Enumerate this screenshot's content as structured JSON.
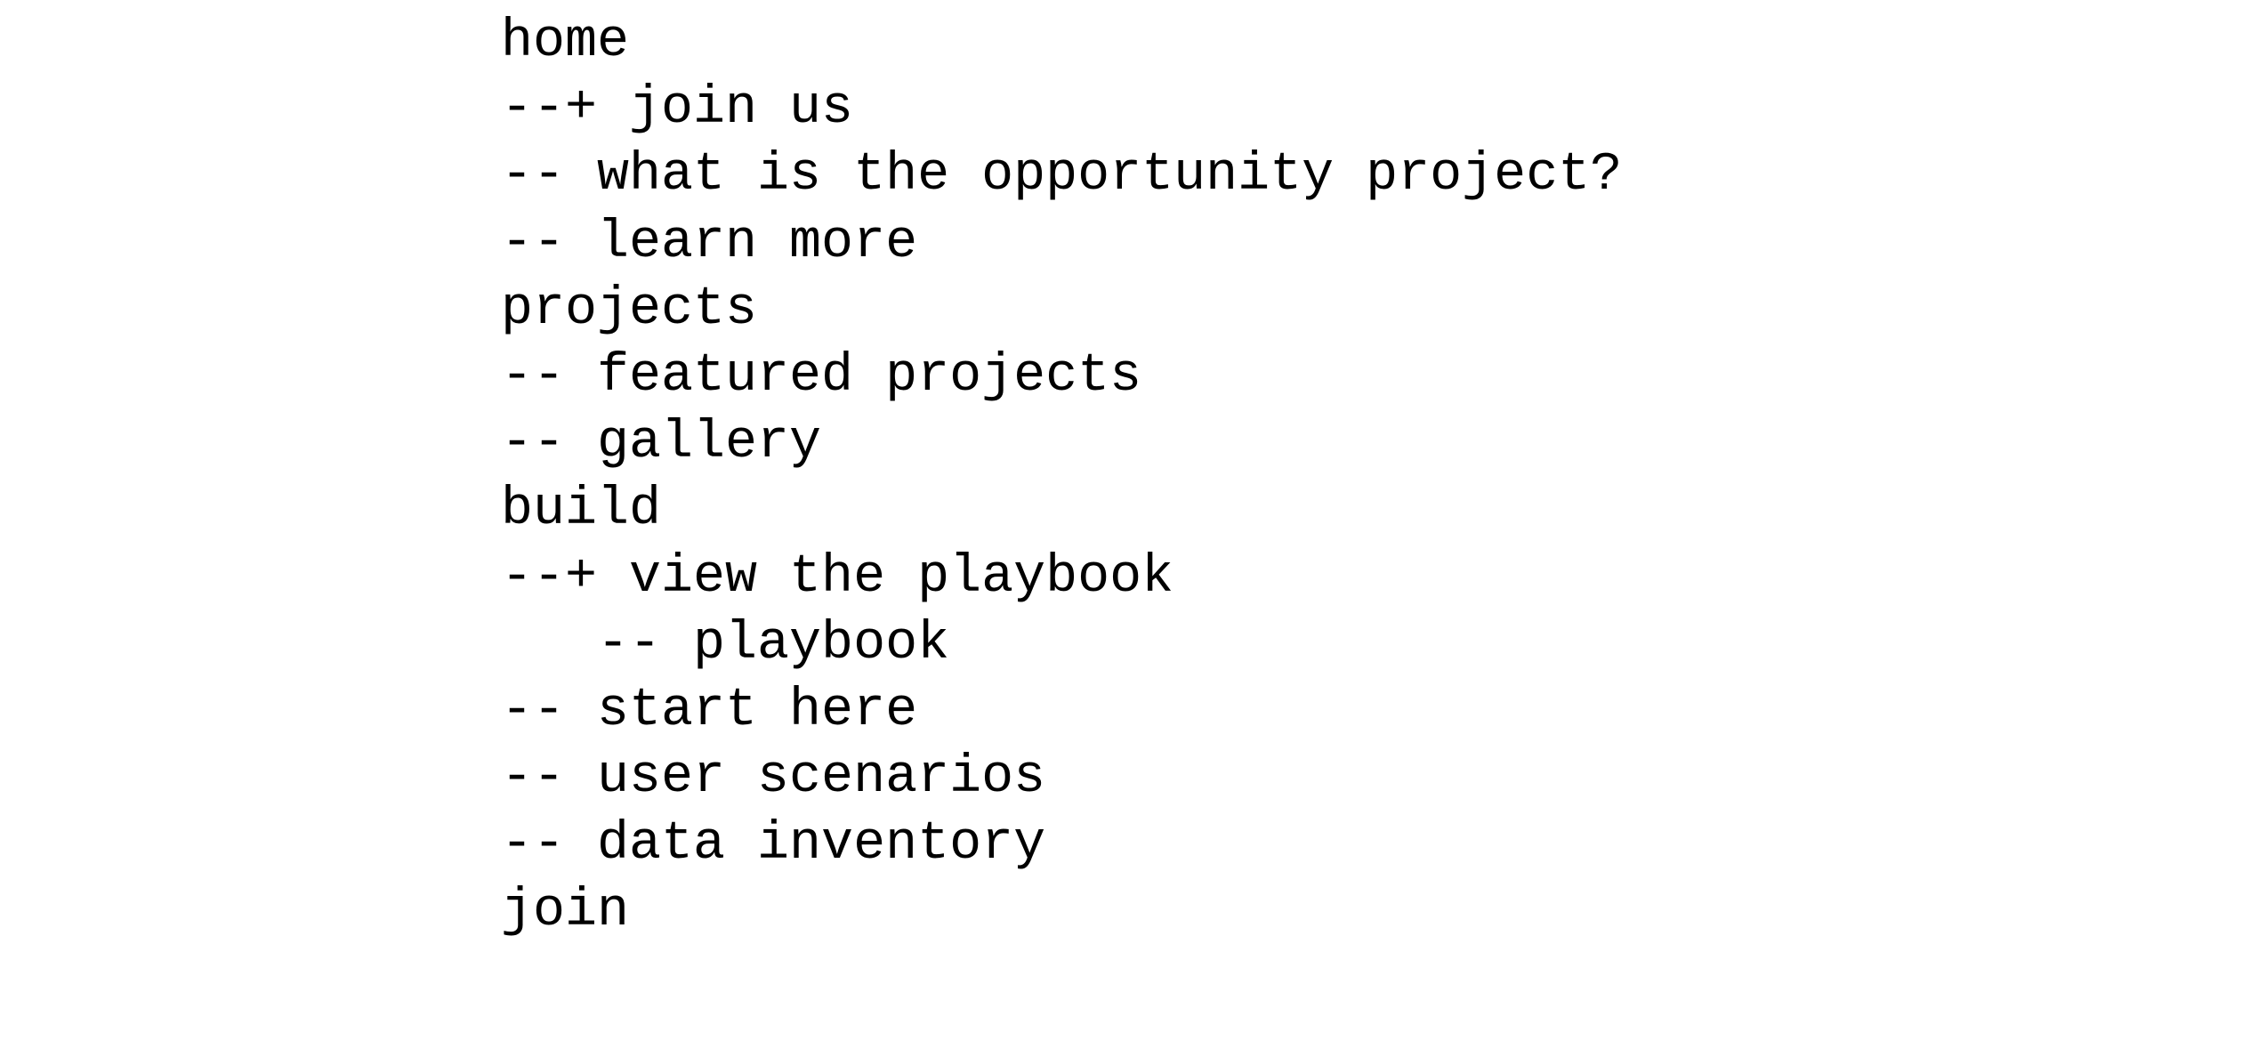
{
  "lines": [
    "home",
    "--+ join us",
    "-- what is the opportunity project?",
    "-- learn more",
    "projects",
    "-- featured projects",
    "-- gallery",
    "build",
    "--+ view the playbook",
    "   -- playbook",
    "-- start here",
    "-- user scenarios",
    "-- data inventory",
    "join"
  ]
}
